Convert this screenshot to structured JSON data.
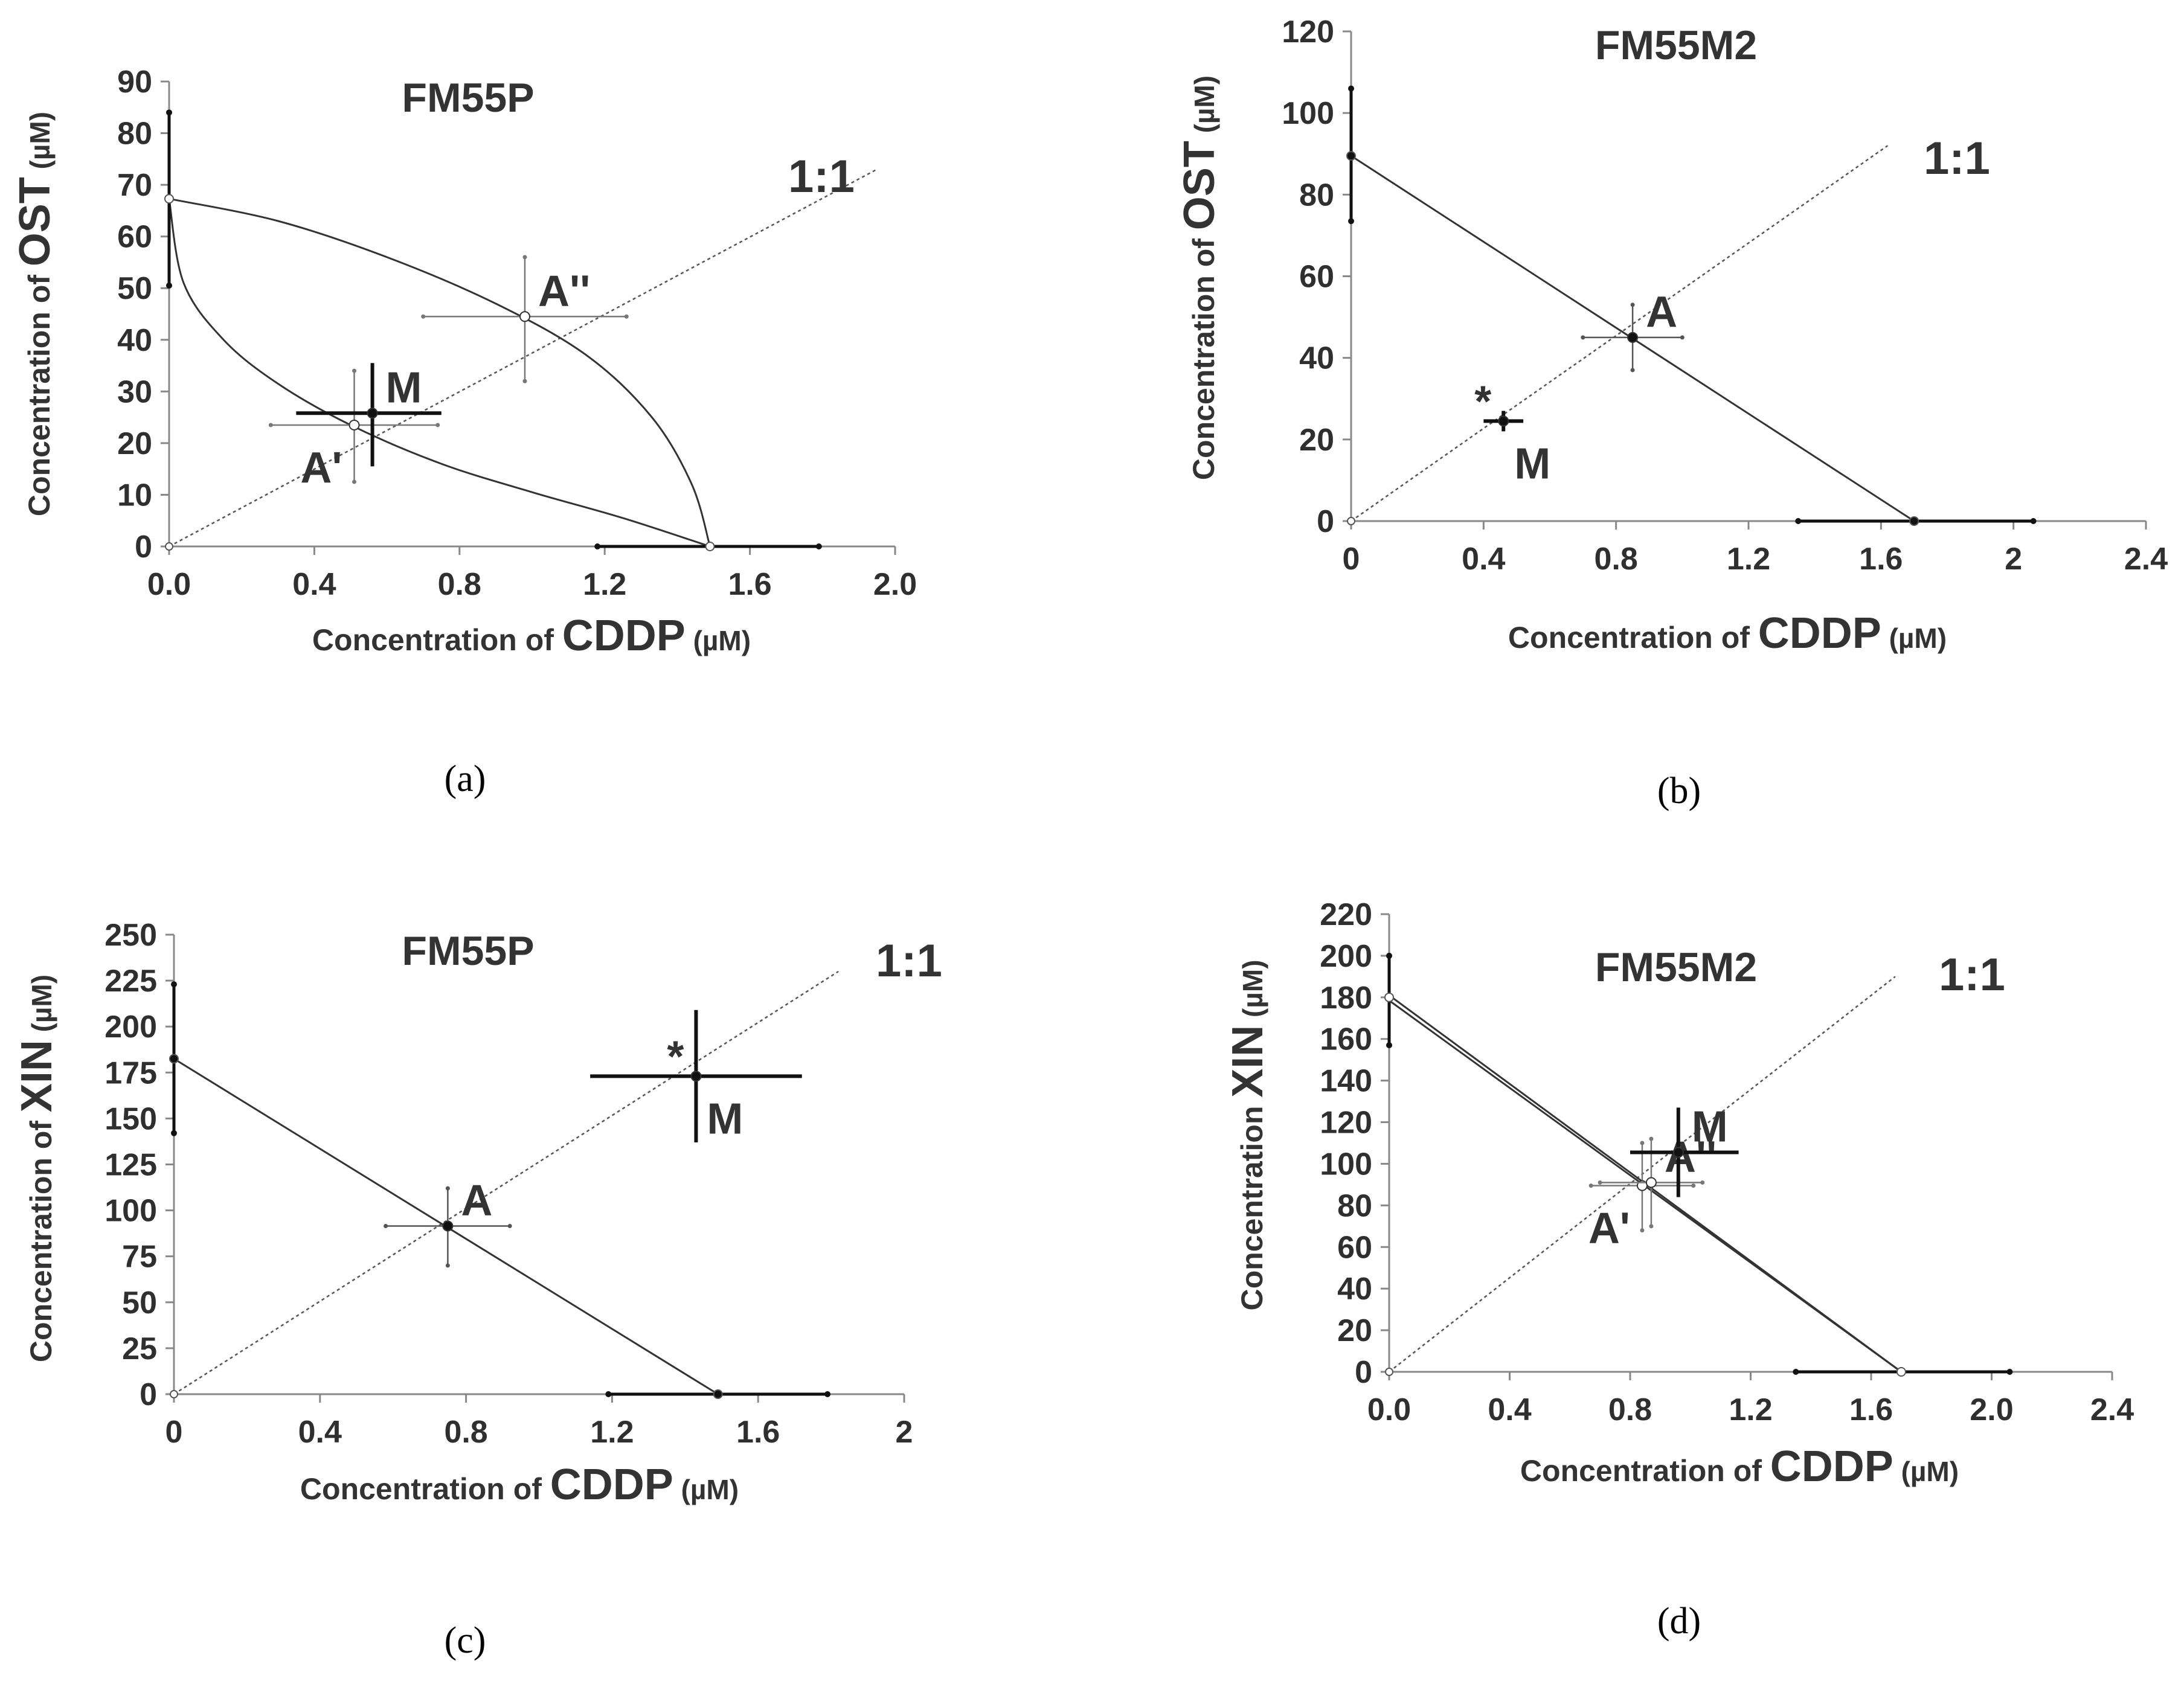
{
  "chart_data": [
    {
      "type": "scatter",
      "panel": "a",
      "caption": "(a)",
      "title": "FM55P",
      "xlabel": {
        "prefix": "Concentration of ",
        "drug": "CDDP",
        "unit": " (µM)"
      },
      "ylabel": {
        "prefix": "Concentration of ",
        "drug": "OST",
        "unit": " (µM)"
      },
      "xlim": [
        0,
        2.0
      ],
      "ylim": [
        0,
        90
      ],
      "xticks": [
        "0.0",
        "0.4",
        "0.8",
        "1.2",
        "1.6",
        "2.0"
      ],
      "yticks": [
        "0",
        "10",
        "20",
        "30",
        "40",
        "50",
        "60",
        "70",
        "80",
        "90"
      ],
      "ratio_label": "1:1",
      "ratio_line": {
        "x": [
          0,
          1.95
        ],
        "y": [
          0,
          73
        ]
      },
      "x_intercept": {
        "value": 1.49,
        "err": [
          1.18,
          1.79
        ]
      },
      "y_intercept": {
        "value": 67.3,
        "err": [
          50.5,
          84.0
        ]
      },
      "isoboles": [
        {
          "name": "lower additivity",
          "points": [
            [
              0,
              67.3
            ],
            [
              0.04,
              51
            ],
            [
              0.15,
              40
            ],
            [
              0.3,
              31.5
            ],
            [
              0.5,
              23.5
            ],
            [
              0.75,
              16
            ],
            [
              1.0,
              10.5
            ],
            [
              1.25,
              5.5
            ],
            [
              1.49,
              0
            ]
          ]
        },
        {
          "name": "upper additivity",
          "points": [
            [
              0,
              67.3
            ],
            [
              0.3,
              63
            ],
            [
              0.6,
              56
            ],
            [
              0.9,
              47
            ],
            [
              1.15,
              37
            ],
            [
              1.33,
              25
            ],
            [
              1.44,
              12
            ],
            [
              1.49,
              0
            ]
          ]
        }
      ],
      "points": [
        {
          "label": "A'",
          "x": 0.51,
          "y": 23.5,
          "xerr": [
            0.28,
            0.74
          ],
          "yerr": [
            12.5,
            34.0
          ],
          "style": "open",
          "label_pos": "bottom-left"
        },
        {
          "label": "A''",
          "x": 0.98,
          "y": 44.5,
          "xerr": [
            0.7,
            1.26
          ],
          "yerr": [
            32.0,
            56.0
          ],
          "style": "open",
          "label_pos": "top-right"
        },
        {
          "label": "M",
          "x": 0.56,
          "y": 25.8,
          "xerr": [
            0.35,
            0.75
          ],
          "yerr": [
            15.5,
            35.5
          ],
          "style": "bold",
          "label_pos": "top-right"
        }
      ]
    },
    {
      "type": "scatter",
      "panel": "b",
      "caption": "(b)",
      "title": "FM55M2",
      "xlabel": {
        "prefix": "Concentration of ",
        "drug": "CDDP",
        "unit": " (µM)"
      },
      "ylabel": {
        "prefix": "Concentration of ",
        "drug": "OST",
        "unit": " (µM)"
      },
      "xlim": [
        0,
        2.4
      ],
      "ylim": [
        0,
        120
      ],
      "xticks": [
        "0",
        "0.4",
        "0.8",
        "1.2",
        "1.6",
        "2",
        "2.4"
      ],
      "yticks": [
        "0",
        "20",
        "40",
        "60",
        "80",
        "100",
        "120"
      ],
      "ratio_label": "1:1",
      "ratio_line": {
        "x": [
          0,
          1.62
        ],
        "y": [
          0,
          92
        ]
      },
      "x_intercept": {
        "value": 1.7,
        "err": [
          1.35,
          2.06
        ]
      },
      "y_intercept": {
        "value": 89.5,
        "err": [
          73.5,
          106.0
        ]
      },
      "isoboles": [
        {
          "name": "additivity",
          "points": [
            [
              0,
              89.5
            ],
            [
              1.7,
              0
            ]
          ]
        }
      ],
      "points": [
        {
          "label": "A",
          "x": 0.85,
          "y": 45,
          "xerr": [
            0.7,
            1.0
          ],
          "yerr": [
            37,
            53
          ],
          "style": "filled",
          "label_pos": "top-right"
        },
        {
          "label": "M",
          "x": 0.46,
          "y": 24.5,
          "xerr": [
            0.4,
            0.52
          ],
          "yerr": [
            22,
            27
          ],
          "style": "bold",
          "label_pos": "bottom-right",
          "mark": "*"
        }
      ]
    },
    {
      "type": "scatter",
      "panel": "c",
      "caption": "(c)",
      "title": "FM55P",
      "xlabel": {
        "prefix": "Concentration of ",
        "drug": "CDDP",
        "unit": " (µM)"
      },
      "ylabel": {
        "prefix": "Concentration of ",
        "drug": "XIN",
        "unit": " (µM)"
      },
      "xlim": [
        0,
        2
      ],
      "ylim": [
        0,
        250
      ],
      "xticks": [
        "0",
        "0.4",
        "0.8",
        "1.2",
        "1.6",
        "2"
      ],
      "yticks": [
        "0",
        "25",
        "50",
        "75",
        "100",
        "125",
        "150",
        "175",
        "200",
        "225",
        "250"
      ],
      "ratio_label": "1:1",
      "ratio_line": {
        "x": [
          0,
          1.82
        ],
        "y": [
          0,
          230
        ]
      },
      "x_intercept": {
        "value": 1.49,
        "err": [
          1.19,
          1.79
        ]
      },
      "y_intercept": {
        "value": 182.5,
        "err": [
          142,
          223
        ]
      },
      "isoboles": [
        {
          "name": "additivity",
          "points": [
            [
              0,
              182.5
            ],
            [
              1.49,
              0
            ]
          ]
        }
      ],
      "points": [
        {
          "label": "A",
          "x": 0.75,
          "y": 91.5,
          "xerr": [
            0.58,
            0.92
          ],
          "yerr": [
            70,
            112
          ],
          "style": "filled",
          "label_pos": "top-right"
        },
        {
          "label": "M",
          "x": 1.43,
          "y": 173,
          "xerr": [
            1.14,
            1.72
          ],
          "yerr": [
            137,
            209
          ],
          "style": "bold",
          "label_pos": "bottom-right",
          "mark": "*"
        }
      ]
    },
    {
      "type": "scatter",
      "panel": "d",
      "caption": "(d)",
      "title": "FM55M2",
      "xlabel": {
        "prefix": "Concentration of ",
        "drug": "CDDP",
        "unit": " (µM)"
      },
      "ylabel": {
        "prefix": "Concentration ",
        "drug": "XIN",
        "unit": " (µM)"
      },
      "xlim": [
        0,
        2.4
      ],
      "ylim": [
        0,
        220
      ],
      "xticks": [
        "0.0",
        "0.4",
        "0.8",
        "1.2",
        "1.6",
        "2.0",
        "2.4"
      ],
      "yticks": [
        "0",
        "20",
        "40",
        "60",
        "80",
        "100",
        "120",
        "140",
        "160",
        "180",
        "200",
        "220"
      ],
      "ratio_label": "1:1",
      "ratio_line": {
        "x": [
          0,
          1.68
        ],
        "y": [
          0,
          190
        ]
      },
      "x_intercept": {
        "value": 1.7,
        "err": [
          1.35,
          2.06
        ]
      },
      "y_intercept": {
        "value": 180,
        "err": [
          157,
          200
        ]
      },
      "isoboles": [
        {
          "name": "lower additivity",
          "points": [
            [
              0,
              178.5
            ],
            [
              1.7,
              0
            ]
          ]
        },
        {
          "name": "upper additivity",
          "points": [
            [
              0,
              181
            ],
            [
              1.7,
              0
            ]
          ]
        }
      ],
      "points": [
        {
          "label": "A'",
          "x": 0.84,
          "y": 89.5,
          "xerr": [
            0.67,
            1.01
          ],
          "yerr": [
            68,
            110
          ],
          "style": "open",
          "label_pos": "bottom-left"
        },
        {
          "label": "A''",
          "x": 0.87,
          "y": 91,
          "xerr": [
            0.7,
            1.04
          ],
          "yerr": [
            70,
            112
          ],
          "style": "open",
          "label_pos": "top-right"
        },
        {
          "label": "M",
          "x": 0.96,
          "y": 105.5,
          "xerr": [
            0.8,
            1.16
          ],
          "yerr": [
            84,
            127
          ],
          "style": "bold",
          "label_pos": "top-right"
        }
      ]
    }
  ]
}
